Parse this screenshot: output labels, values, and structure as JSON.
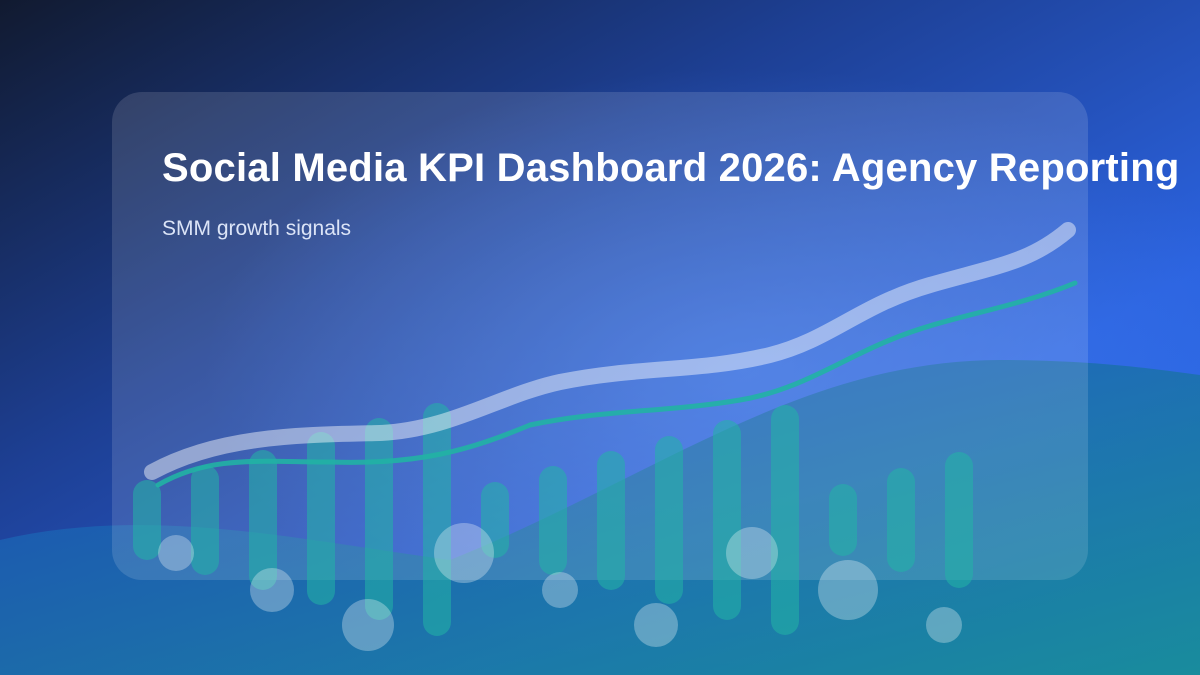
{
  "header": {
    "title": "Social Media KPI Dashboard 2026: Agency Reporting",
    "subtitle": "SMM growth signals"
  }
}
